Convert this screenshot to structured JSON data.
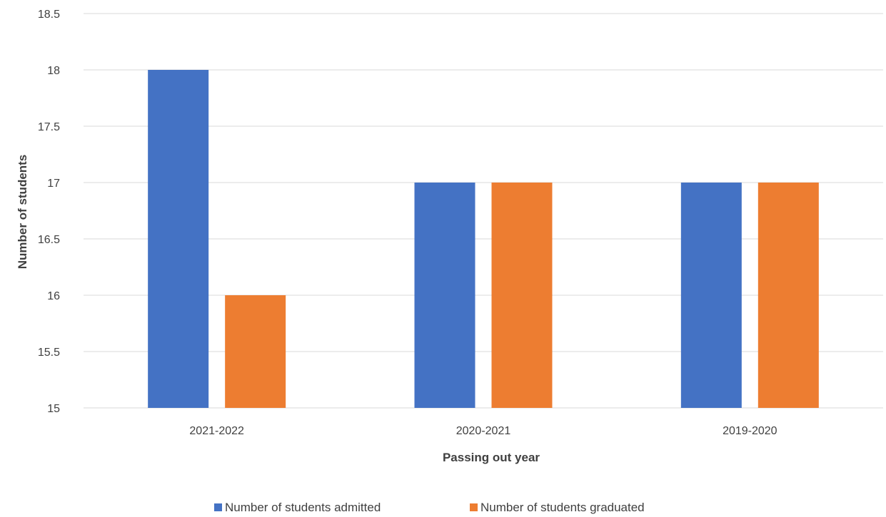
{
  "chart_data": {
    "type": "bar",
    "title": "",
    "xlabel": "Passing out year",
    "ylabel": "Number of students",
    "categories": [
      "2021-2022",
      "2020-2021",
      "2019-2020"
    ],
    "series": [
      {
        "name": "Number of students admitted",
        "values": [
          18,
          17,
          17
        ],
        "color": "#4472c4"
      },
      {
        "name": "Number of students graduated",
        "values": [
          16,
          17,
          17
        ],
        "color": "#ed7d31"
      }
    ],
    "ylim": [
      15,
      18.5
    ],
    "yticks": [
      "15",
      "15.5",
      "16",
      "16.5",
      "17",
      "17.5",
      "18",
      "18.5"
    ],
    "grid": true,
    "gridColor": "#d9d9d9",
    "legend": "bottom-center"
  }
}
